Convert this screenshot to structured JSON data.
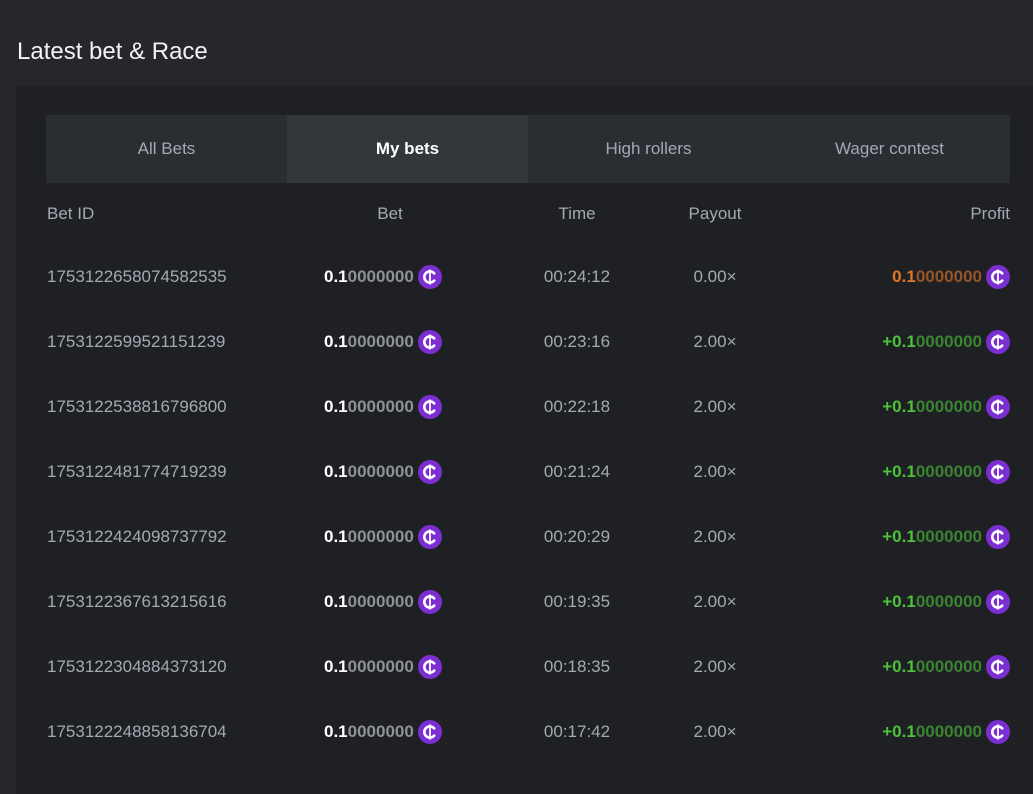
{
  "header": {
    "title": "Latest bet & Race"
  },
  "tabs": [
    {
      "label": "All Bets",
      "active": false
    },
    {
      "label": "My bets",
      "active": true
    },
    {
      "label": "High rollers",
      "active": false
    },
    {
      "label": "Wager contest",
      "active": false
    }
  ],
  "table": {
    "columns": [
      "Bet ID",
      "Bet",
      "Time",
      "Payout",
      "Profit"
    ],
    "rows": [
      {
        "bet_id": "1753122658074582535",
        "bet": {
          "lead": "0.1",
          "trail": "0000000"
        },
        "time": "00:24:12",
        "payout": "0.00×",
        "profit": {
          "lead": "0.1",
          "trail": "0000000",
          "color": "#e0762a"
        }
      },
      {
        "bet_id": "1753122599521151239",
        "bet": {
          "lead": "0.1",
          "trail": "0000000"
        },
        "time": "00:23:16",
        "payout": "2.00×",
        "profit": {
          "lead": "+0.1",
          "trail": "0000000",
          "color": "#4cc13a"
        }
      },
      {
        "bet_id": "1753122538816796800",
        "bet": {
          "lead": "0.1",
          "trail": "0000000"
        },
        "time": "00:22:18",
        "payout": "2.00×",
        "profit": {
          "lead": "+0.1",
          "trail": "0000000",
          "color": "#4cc13a"
        }
      },
      {
        "bet_id": "1753122481774719239",
        "bet": {
          "lead": "0.1",
          "trail": "0000000"
        },
        "time": "00:21:24",
        "payout": "2.00×",
        "profit": {
          "lead": "+0.1",
          "trail": "0000000",
          "color": "#4cc13a"
        }
      },
      {
        "bet_id": "1753122424098737792",
        "bet": {
          "lead": "0.1",
          "trail": "0000000"
        },
        "time": "00:20:29",
        "payout": "2.00×",
        "profit": {
          "lead": "+0.1",
          "trail": "0000000",
          "color": "#4cc13a"
        }
      },
      {
        "bet_id": "1753122367613215616",
        "bet": {
          "lead": "0.1",
          "trail": "0000000"
        },
        "time": "00:19:35",
        "payout": "2.00×",
        "profit": {
          "lead": "+0.1",
          "trail": "0000000",
          "color": "#4cc13a"
        }
      },
      {
        "bet_id": "1753122304884373120",
        "bet": {
          "lead": "0.1",
          "trail": "0000000"
        },
        "time": "00:18:35",
        "payout": "2.00×",
        "profit": {
          "lead": "+0.1",
          "trail": "0000000",
          "color": "#4cc13a"
        }
      },
      {
        "bet_id": "1753122248858136704",
        "bet": {
          "lead": "0.1",
          "trail": "0000000"
        },
        "time": "00:17:42",
        "payout": "2.00×",
        "profit": {
          "lead": "+0.1",
          "trail": "0000000",
          "color": "#4cc13a"
        }
      }
    ]
  }
}
